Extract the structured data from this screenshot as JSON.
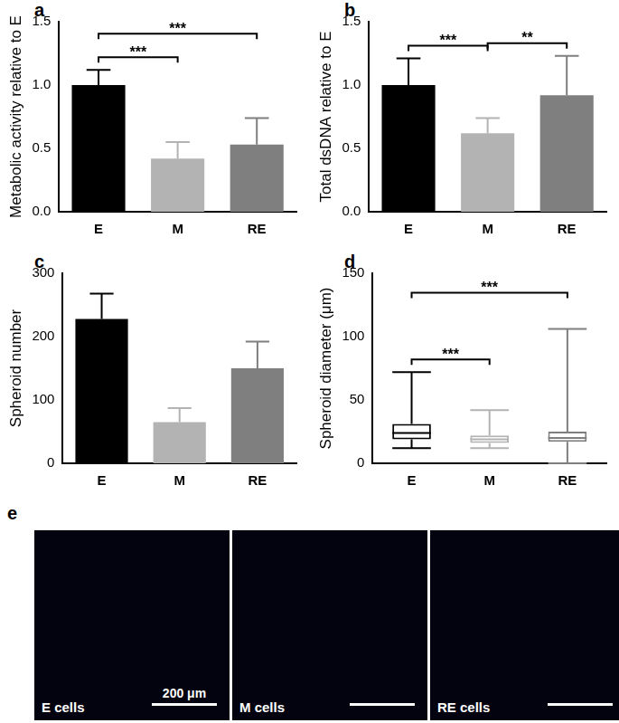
{
  "chart_data": [
    {
      "type": "bar",
      "panel": "a",
      "ylabel": "Metabolic activity relative to E",
      "categories": [
        "E",
        "M",
        "RE"
      ],
      "values": [
        1.0,
        0.42,
        0.53
      ],
      "errors": [
        0.12,
        0.13,
        0.21
      ],
      "colors": [
        "#000000",
        "#b3b3b3",
        "#7f7f7f"
      ],
      "ylim": [
        0,
        1.5
      ],
      "yticks": [
        {
          "value": 0,
          "label": "0.0"
        },
        {
          "value": 0.5,
          "label": "0.5"
        },
        {
          "value": 1,
          "label": "1.0"
        },
        {
          "value": 1.5,
          "label": "1.5"
        }
      ],
      "grid": false,
      "significance": [
        {
          "from": "E",
          "to": "M",
          "label": "***"
        },
        {
          "from": "E",
          "to": "RE",
          "label": "***"
        }
      ]
    },
    {
      "type": "bar",
      "panel": "b",
      "ylabel": "Total dsDNA relative to E",
      "categories": [
        "E",
        "M",
        "RE"
      ],
      "values": [
        1.0,
        0.62,
        0.92
      ],
      "errors": [
        0.21,
        0.12,
        0.31
      ],
      "colors": [
        "#000000",
        "#b3b3b3",
        "#7f7f7f"
      ],
      "ylim": [
        0,
        1.5
      ],
      "yticks": [
        {
          "value": 0,
          "label": "0.0"
        },
        {
          "value": 0.5,
          "label": "0.5"
        },
        {
          "value": 1,
          "label": "1.0"
        },
        {
          "value": 1.5,
          "label": "1.5"
        }
      ],
      "grid": false,
      "significance": [
        {
          "from": "E",
          "to": "M",
          "label": "***"
        },
        {
          "from": "M",
          "to": "RE",
          "label": "**"
        }
      ]
    },
    {
      "type": "bar",
      "panel": "c",
      "ylabel": "Spheroid number",
      "categories": [
        "E",
        "M",
        "RE"
      ],
      "values": [
        228,
        65,
        150
      ],
      "errors": [
        40,
        22,
        42
      ],
      "colors": [
        "#000000",
        "#b3b3b3",
        "#7f7f7f"
      ],
      "ylim": [
        0,
        300
      ],
      "yticks": [
        0,
        100,
        200,
        300
      ],
      "grid": false,
      "significance": []
    },
    {
      "type": "box",
      "panel": "d",
      "ylabel": "Spheroid diameter (μm)",
      "categories": [
        "E",
        "M",
        "RE"
      ],
      "boxes": [
        {
          "min": 12,
          "q1": 19,
          "median": 24,
          "q3": 31,
          "max": 72
        },
        {
          "min": 12,
          "q1": 16,
          "median": 19,
          "q3": 22,
          "max": 42
        },
        {
          "min": 0,
          "q1": 17,
          "median": 20,
          "q3": 25,
          "max": 106
        }
      ],
      "colors": [
        "#000000",
        "#b3b3b3",
        "#7f7f7f"
      ],
      "ylim": [
        0,
        150
      ],
      "yticks": [
        0,
        50,
        100,
        150
      ],
      "grid": false,
      "significance": [
        {
          "from": "E",
          "to": "M",
          "label": "***"
        },
        {
          "from": "E",
          "to": "RE",
          "label": "***"
        }
      ]
    }
  ],
  "images": {
    "panel": "e",
    "panels": [
      {
        "caption": "E cells",
        "scale_bar": "200 μm"
      },
      {
        "caption": "M cells"
      },
      {
        "caption": "RE cells"
      }
    ]
  }
}
